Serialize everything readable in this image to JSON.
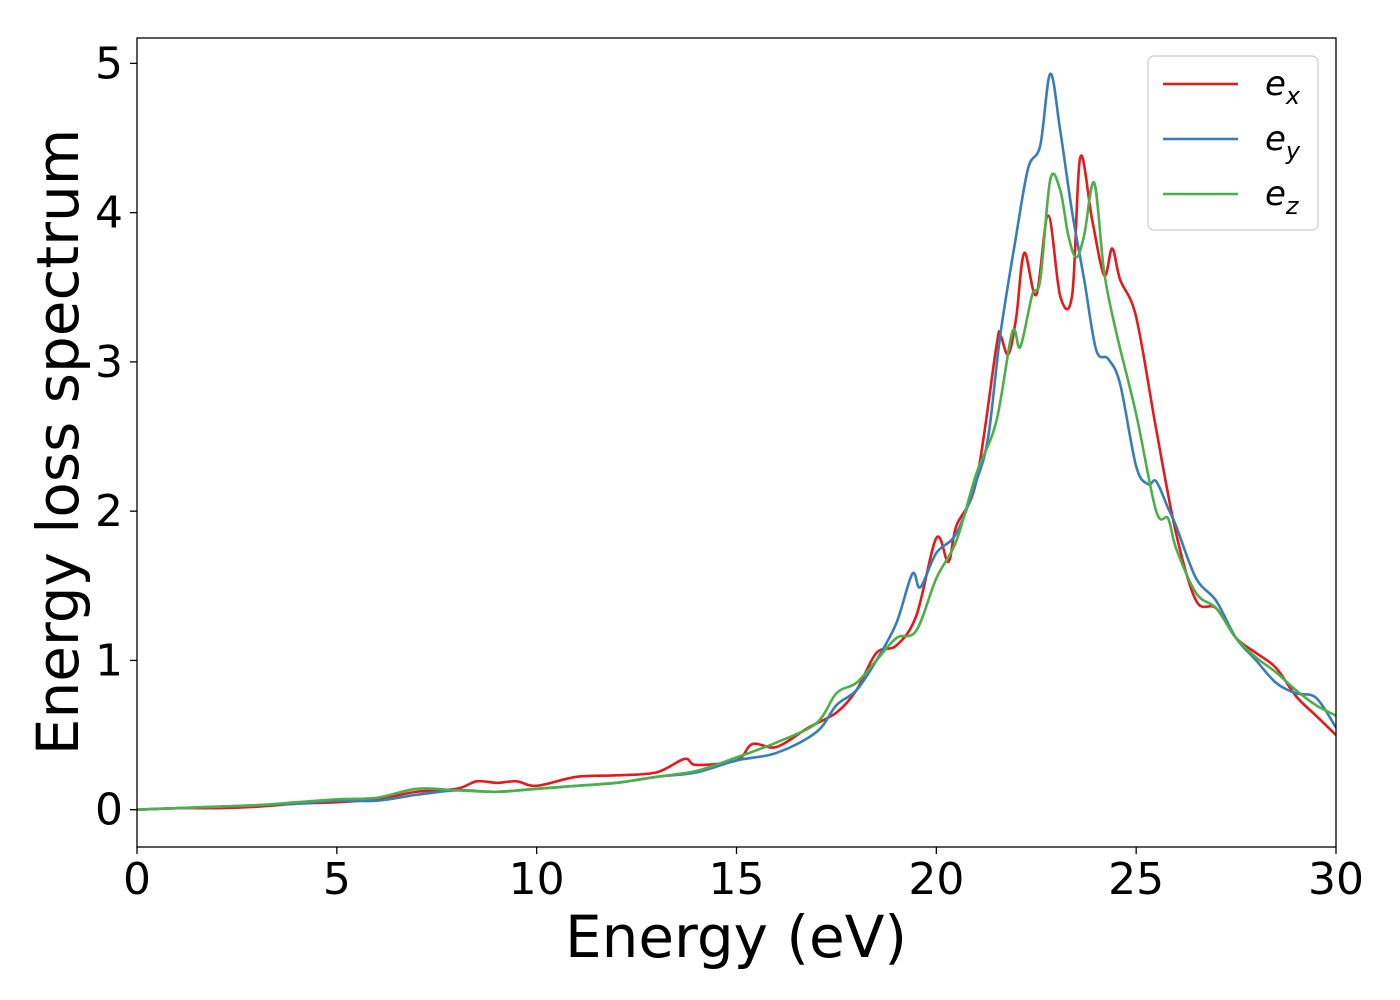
{
  "chart_data": {
    "type": "line",
    "xlabel": "Energy (eV)",
    "ylabel": "Energy loss spectrum",
    "xlim": [
      0,
      30
    ],
    "ylim": [
      -0.25,
      5.17
    ],
    "xticks": [
      0,
      5,
      10,
      15,
      20,
      25,
      30
    ],
    "xtick_labels": [
      "0",
      "5",
      "10",
      "15",
      "20",
      "25",
      "30"
    ],
    "yticks": [
      0,
      1,
      2,
      3,
      4,
      5
    ],
    "ytick_labels": [
      "0",
      "1",
      "2",
      "3",
      "4",
      "5"
    ],
    "grid": false,
    "legend_position": "top-right",
    "series": [
      {
        "name_base": "e",
        "name_sub": "x",
        "color": "#e41a1c",
        "x": [
          0,
          1,
          2,
          3,
          4,
          5,
          6,
          7,
          8,
          8.5,
          9,
          9.5,
          10,
          11,
          12,
          13,
          13.7,
          14,
          15,
          15.4,
          16,
          16.8,
          17.5,
          18,
          18.5,
          19,
          19.5,
          20,
          20.3,
          20.5,
          21,
          21.5,
          21.6,
          21.8,
          22,
          22.2,
          22.5,
          22.8,
          23.1,
          23.4,
          23.6,
          23.9,
          24.2,
          24.4,
          24.6,
          25,
          25.5,
          26,
          26.5,
          27,
          27.5,
          28,
          28.5,
          29,
          29.5,
          30
        ],
        "y": [
          0,
          0.01,
          0.01,
          0.02,
          0.04,
          0.05,
          0.07,
          0.12,
          0.14,
          0.19,
          0.18,
          0.19,
          0.16,
          0.22,
          0.23,
          0.25,
          0.34,
          0.3,
          0.33,
          0.44,
          0.42,
          0.55,
          0.65,
          0.8,
          1.05,
          1.1,
          1.3,
          1.82,
          1.66,
          1.9,
          2.2,
          3.1,
          3.18,
          3.05,
          3.3,
          3.73,
          3.45,
          3.98,
          3.44,
          3.45,
          4.37,
          3.95,
          3.58,
          3.76,
          3.55,
          3.3,
          2.55,
          1.85,
          1.4,
          1.35,
          1.15,
          1.05,
          0.95,
          0.76,
          0.63,
          0.5
        ]
      },
      {
        "name_base": "e",
        "name_sub": "y",
        "color": "#377eb8",
        "x": [
          0,
          1,
          2,
          3,
          4,
          5,
          6,
          7,
          8,
          9,
          10,
          11,
          12,
          13,
          14,
          15,
          16,
          17,
          17.5,
          18,
          18.5,
          19,
          19.4,
          19.6,
          20,
          20.5,
          21,
          21.3,
          21.6,
          22,
          22.3,
          22.6,
          22.85,
          23.1,
          23.4,
          23.7,
          24,
          24.3,
          24.6,
          25,
          25.3,
          25.5,
          25.8,
          26,
          26.5,
          27,
          27.5,
          28,
          28.5,
          29,
          29.5,
          30
        ],
        "y": [
          0,
          0.01,
          0.02,
          0.03,
          0.04,
          0.06,
          0.06,
          0.1,
          0.13,
          0.12,
          0.14,
          0.16,
          0.18,
          0.22,
          0.25,
          0.33,
          0.38,
          0.52,
          0.7,
          0.8,
          1.0,
          1.25,
          1.58,
          1.49,
          1.72,
          1.85,
          2.2,
          2.5,
          3.18,
          3.85,
          4.3,
          4.45,
          4.93,
          4.55,
          4.0,
          3.55,
          3.08,
          3.02,
          2.85,
          2.3,
          2.18,
          2.2,
          2.02,
          1.9,
          1.55,
          1.4,
          1.15,
          1.0,
          0.85,
          0.78,
          0.75,
          0.55
        ]
      },
      {
        "name_base": "e",
        "name_sub": "z",
        "color": "#4daf4a",
        "x": [
          0,
          1,
          2,
          3,
          4,
          5,
          6,
          7,
          8,
          9,
          10,
          11,
          12,
          13,
          14,
          15,
          16,
          17,
          17.5,
          18,
          18.5,
          19,
          19.5,
          20,
          20.5,
          21,
          21.5,
          21.9,
          22.1,
          22.4,
          22.6,
          22.85,
          23.1,
          23.3,
          23.5,
          23.7,
          23.95,
          24.2,
          24.5,
          25,
          25.5,
          25.8,
          26,
          26.5,
          27,
          27.5,
          28,
          28.5,
          29,
          29.5,
          30
        ],
        "y": [
          0,
          0.01,
          0.02,
          0.03,
          0.05,
          0.07,
          0.08,
          0.14,
          0.13,
          0.12,
          0.14,
          0.16,
          0.18,
          0.22,
          0.26,
          0.35,
          0.45,
          0.58,
          0.78,
          0.85,
          1.0,
          1.15,
          1.2,
          1.55,
          1.8,
          2.25,
          2.6,
          3.2,
          3.1,
          3.45,
          3.55,
          4.22,
          4.15,
          3.85,
          3.7,
          3.85,
          4.2,
          3.6,
          3.2,
          2.65,
          2.0,
          1.95,
          1.75,
          1.45,
          1.35,
          1.15,
          1.02,
          0.92,
          0.8,
          0.7,
          0.63
        ]
      }
    ]
  }
}
